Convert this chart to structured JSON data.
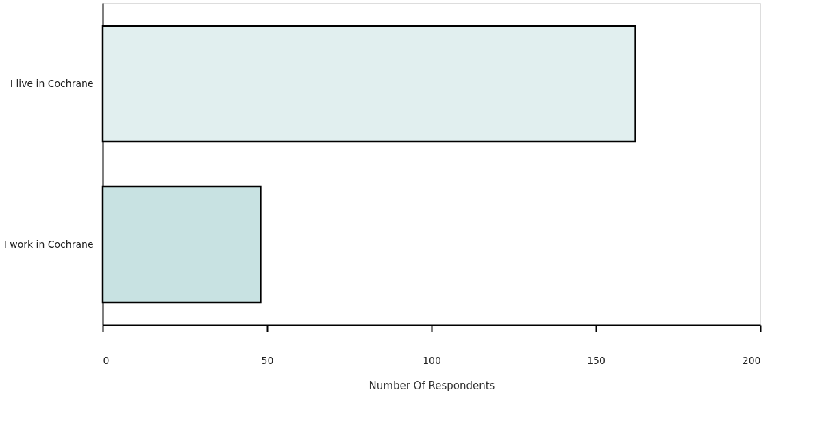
{
  "chart_data": {
    "type": "bar",
    "orientation": "horizontal",
    "xlabel": "Number Of Respondents",
    "categories": [
      "I live in Cochrane",
      "I work in Cochrane"
    ],
    "values": [
      162,
      48
    ],
    "colors": [
      "#e1efef",
      "#c8e2e2"
    ],
    "xlim": [
      0,
      200
    ],
    "xticks": [
      0,
      50,
      100,
      150,
      200
    ],
    "grid": false
  }
}
